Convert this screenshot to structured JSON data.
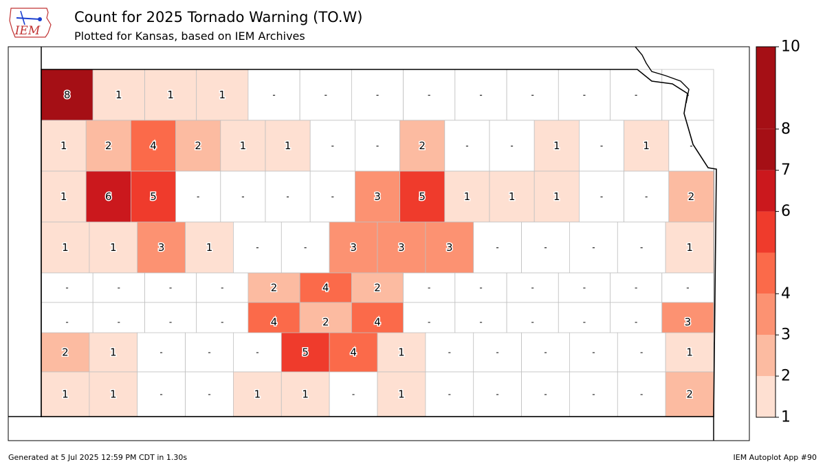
{
  "header": {
    "title": "Count for 2025 Tornado Warning (TO.W)",
    "subtitle": "Plotted for Kansas, based on IEM Archives",
    "logo_text": "IEM"
  },
  "footer": {
    "generated": "Generated at 5 Jul 2025 12:59 PM CDT in 1.30s",
    "app": "IEM Autoplot App #90"
  },
  "colors": {
    "bins": [
      "#fee0d2",
      "#fcbba1",
      "#fc9272",
      "#fb6a4a",
      "#ef3b2c",
      "#cb181d",
      "#a50f15"
    ],
    "empty": "#ffffff",
    "border": "#000000",
    "county_line": "#c0c0c0"
  },
  "colorbar": {
    "ticks": [
      1,
      2,
      3,
      4,
      6,
      7,
      8,
      10
    ],
    "bin_edges": [
      1,
      2,
      3,
      4,
      5,
      6,
      7,
      8,
      10
    ]
  },
  "chart_data": {
    "type": "heatmap",
    "no_data_label": "-",
    "rows": [
      [
        8,
        1,
        1,
        1,
        null,
        null,
        null,
        null,
        null,
        null,
        null,
        null,
        null
      ],
      [
        1,
        2,
        4,
        2,
        1,
        1,
        null,
        null,
        2,
        null,
        null,
        1,
        null,
        1,
        null
      ],
      [
        1,
        6,
        5,
        null,
        null,
        null,
        null,
        3,
        5,
        1,
        1,
        1,
        null,
        null,
        2
      ],
      [
        1,
        1,
        3,
        1,
        null,
        null,
        3,
        3,
        3,
        null,
        null,
        null,
        null,
        1
      ],
      [
        null,
        null,
        null,
        null,
        2,
        4,
        2,
        null,
        null,
        null,
        null,
        null,
        null
      ],
      [
        null,
        null,
        null,
        null,
        4,
        2,
        4,
        null,
        null,
        null,
        null,
        null,
        3
      ],
      [
        2,
        1,
        null,
        null,
        null,
        5,
        4,
        1,
        null,
        null,
        null,
        null,
        null,
        1
      ],
      [
        1,
        1,
        null,
        null,
        1,
        1,
        null,
        1,
        null,
        null,
        null,
        null,
        null,
        2
      ]
    ]
  }
}
